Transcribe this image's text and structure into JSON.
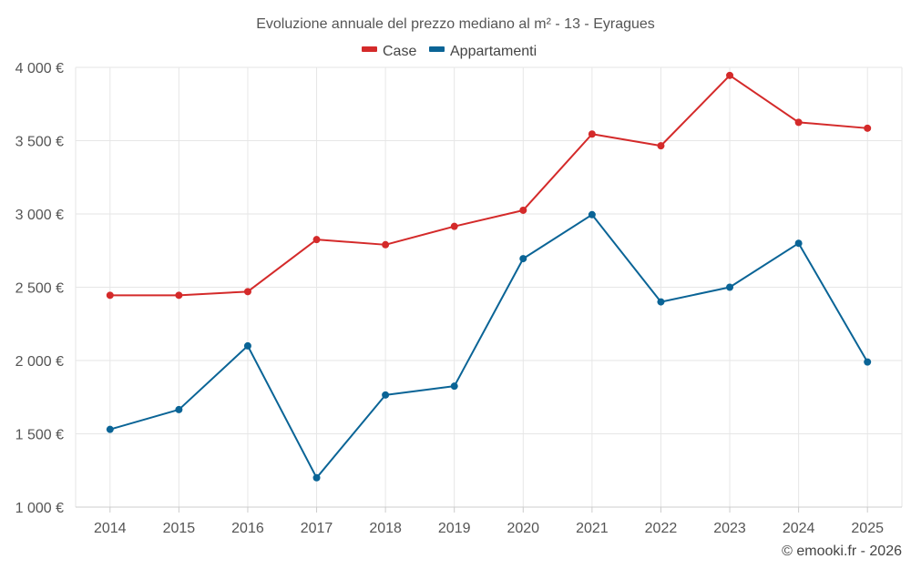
{
  "chart_data": {
    "type": "line",
    "title": "Evoluzione annuale del prezzo mediano al m² - 13 - Eyragues",
    "categories": [
      "2014",
      "2015",
      "2016",
      "2017",
      "2018",
      "2019",
      "2020",
      "2021",
      "2022",
      "2023",
      "2024",
      "2025"
    ],
    "series": [
      {
        "name": "Case",
        "color": "#d42a2a",
        "values": [
          2445,
          2445,
          2470,
          2825,
          2790,
          2915,
          3025,
          3545,
          3465,
          3945,
          3625,
          3585
        ]
      },
      {
        "name": "Appartamenti",
        "color": "#0a6496",
        "values": [
          1530,
          1665,
          2100,
          1200,
          1765,
          1825,
          2695,
          2995,
          2400,
          2500,
          2800,
          1990
        ]
      }
    ],
    "ylim": [
      1000,
      4000
    ],
    "yticks": [
      1000,
      1500,
      2000,
      2500,
      3000,
      3500,
      4000
    ],
    "ytick_labels": [
      "1 000 €",
      "1 500 €",
      "2 000 €",
      "2 500 €",
      "3 000 €",
      "3 500 €",
      "4 000 €"
    ],
    "grid": true,
    "legend_position": "top-center",
    "xlabel": "",
    "ylabel": ""
  },
  "credit": "© emooki.fr - 2026"
}
